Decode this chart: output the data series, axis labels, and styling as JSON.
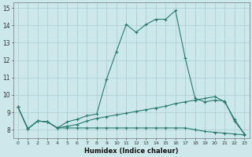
{
  "xlabel": "Humidex (Indice chaleur)",
  "bg_color": "#cce8ea",
  "grid_color": "#aacdd0",
  "line_color": "#2a7a70",
  "xlim": [
    -0.5,
    23.5
  ],
  "ylim": [
    7.5,
    15.3
  ],
  "yticks": [
    8,
    9,
    10,
    11,
    12,
    13,
    14,
    15
  ],
  "xticks": [
    0,
    1,
    2,
    3,
    4,
    5,
    6,
    7,
    8,
    9,
    10,
    11,
    12,
    13,
    14,
    15,
    16,
    17,
    18,
    19,
    20,
    21,
    22,
    23
  ],
  "line1_x": [
    0,
    1,
    2,
    3,
    4,
    5,
    6,
    7,
    8,
    9,
    10,
    11,
    12,
    13,
    14,
    15,
    16,
    17,
    18,
    19,
    20,
    21,
    22,
    23
  ],
  "line1_y": [
    9.3,
    8.05,
    8.5,
    8.45,
    8.1,
    8.45,
    8.6,
    8.8,
    8.9,
    10.9,
    12.5,
    14.05,
    13.6,
    14.05,
    14.35,
    14.35,
    14.85,
    12.1,
    9.8,
    9.6,
    9.7,
    9.65,
    8.5,
    7.75
  ],
  "line2_x": [
    0,
    1,
    2,
    3,
    4,
    5,
    6,
    7,
    8,
    9,
    10,
    11,
    12,
    13,
    14,
    15,
    16,
    17,
    18,
    19,
    20,
    21,
    22,
    23
  ],
  "line2_y": [
    9.3,
    8.05,
    8.5,
    8.45,
    8.1,
    8.2,
    8.3,
    8.5,
    8.65,
    8.75,
    8.85,
    8.95,
    9.05,
    9.15,
    9.25,
    9.35,
    9.5,
    9.6,
    9.7,
    9.8,
    9.9,
    9.6,
    8.6,
    7.75
  ],
  "line3_x": [
    0,
    1,
    2,
    3,
    4,
    5,
    6,
    7,
    8,
    9,
    10,
    11,
    12,
    13,
    14,
    15,
    16,
    17,
    18,
    19,
    20,
    21,
    22,
    23
  ],
  "line3_y": [
    9.3,
    8.05,
    8.5,
    8.45,
    8.1,
    8.1,
    8.1,
    8.1,
    8.1,
    8.1,
    8.1,
    8.1,
    8.1,
    8.1,
    8.1,
    8.1,
    8.1,
    8.1,
    8.0,
    7.9,
    7.85,
    7.8,
    7.75,
    7.7
  ]
}
